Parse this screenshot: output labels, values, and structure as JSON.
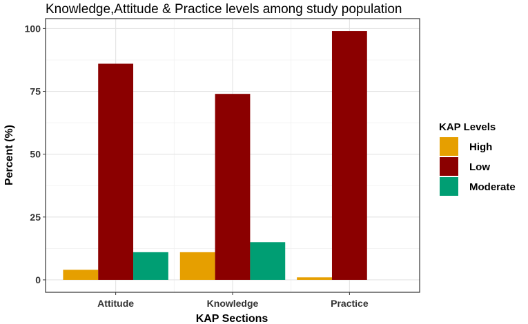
{
  "chart_data": {
    "type": "bar",
    "title": "Knowledge,Attitude & Practice levels among study population",
    "xlabel": "KAP Sections",
    "ylabel": "Percent (%)",
    "categories": [
      "Attitude",
      "Knowledge",
      "Practice"
    ],
    "series": [
      {
        "name": "High",
        "color": "#E69F00",
        "values": [
          4,
          11,
          1
        ]
      },
      {
        "name": "Low",
        "color": "#8B0000",
        "values": [
          86,
          74,
          99
        ]
      },
      {
        "name": "Moderate",
        "color": "#009E73",
        "values": [
          11,
          15,
          0
        ]
      }
    ],
    "ylim": [
      -4.95,
      103.95
    ],
    "yticks": [
      0,
      25,
      50,
      75,
      100
    ],
    "grid": true,
    "legend": {
      "title": "KAP Levels",
      "placement": "right"
    }
  }
}
